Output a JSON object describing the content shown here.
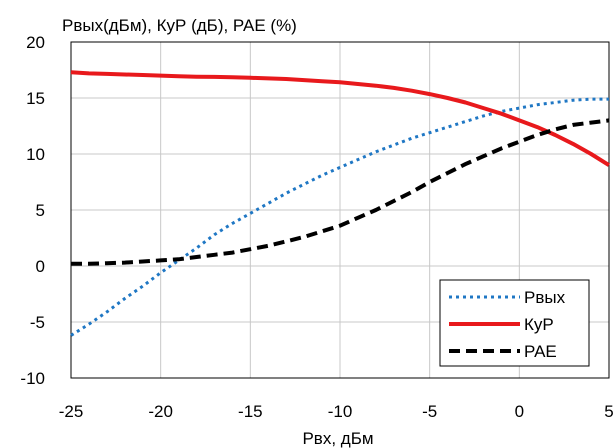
{
  "chart_data": {
    "type": "line",
    "ylabel": "Рвых(дБм), КуР (дБ), PAE (%)",
    "xlabel": "Рвх, дБм",
    "xlim": [
      -25,
      5
    ],
    "ylim": [
      -10,
      20
    ],
    "x_ticks": [
      -25,
      -20,
      -15,
      -10,
      -5,
      0,
      5
    ],
    "y_ticks": [
      -10,
      -5,
      0,
      5,
      10,
      15,
      20
    ],
    "grid": true,
    "legend_position": "bottom-right",
    "series": [
      {
        "name": "Рвых",
        "color": "#1f77c4",
        "style": "dotted",
        "x": [
          -25,
          -24,
          -23,
          -22,
          -21,
          -20,
          -19,
          -18,
          -17,
          -16,
          -15,
          -14,
          -13,
          -12,
          -11,
          -10,
          -9,
          -8,
          -7,
          -6,
          -5,
          -4,
          -3,
          -2,
          -1,
          0,
          1,
          2,
          3,
          4,
          5
        ],
        "y": [
          -6.2,
          -5.2,
          -4.1,
          -2.9,
          -1.8,
          -0.6,
          0.5,
          1.6,
          2.8,
          3.8,
          4.7,
          5.6,
          6.5,
          7.3,
          8.1,
          8.8,
          9.5,
          10.2,
          10.8,
          11.4,
          11.9,
          12.4,
          12.9,
          13.4,
          13.8,
          14.1,
          14.4,
          14.6,
          14.8,
          14.9,
          14.9
        ]
      },
      {
        "name": "КуР",
        "color": "#e8191c",
        "style": "solid",
        "x": [
          -25,
          -24,
          -23,
          -22,
          -21,
          -20,
          -19,
          -18,
          -17,
          -16,
          -15,
          -14,
          -13,
          -12,
          -11,
          -10,
          -9,
          -8,
          -7,
          -6,
          -5,
          -4,
          -3,
          -2,
          -1,
          0,
          1,
          2,
          3,
          4,
          5
        ],
        "y": [
          17.3,
          17.2,
          17.15,
          17.1,
          17.05,
          17.0,
          16.95,
          16.9,
          16.88,
          16.85,
          16.8,
          16.75,
          16.7,
          16.6,
          16.5,
          16.4,
          16.25,
          16.1,
          15.9,
          15.65,
          15.35,
          15.0,
          14.6,
          14.1,
          13.6,
          13.0,
          12.4,
          11.7,
          10.9,
          10.0,
          9.0
        ]
      },
      {
        "name": "PAE",
        "color": "#000000",
        "style": "dashed",
        "x": [
          -25,
          -24,
          -23,
          -22,
          -21,
          -20,
          -19,
          -18,
          -17,
          -16,
          -15,
          -14,
          -13,
          -12,
          -11,
          -10,
          -9,
          -8,
          -7,
          -6,
          -5,
          -4,
          -3,
          -2,
          -1,
          0,
          1,
          2,
          3,
          4,
          5
        ],
        "y": [
          0.2,
          0.2,
          0.25,
          0.3,
          0.4,
          0.5,
          0.6,
          0.8,
          1.0,
          1.2,
          1.5,
          1.8,
          2.2,
          2.6,
          3.1,
          3.6,
          4.3,
          5.0,
          5.8,
          6.6,
          7.5,
          8.3,
          9.1,
          9.8,
          10.5,
          11.1,
          11.7,
          12.2,
          12.6,
          12.8,
          13.0
        ]
      }
    ]
  }
}
